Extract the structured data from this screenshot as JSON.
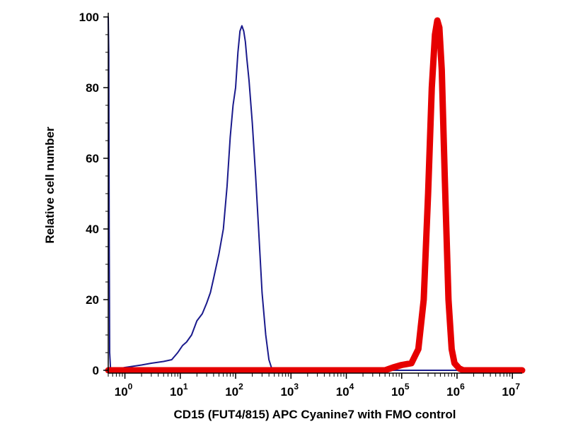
{
  "chart_data": {
    "type": "line",
    "title": "",
    "xlabel": "CD15 (FUT4/815) APC Cyanine7 with FMO control",
    "ylabel": "Relative cell number",
    "xscale": "log",
    "xlim": [
      0.5,
      15000000
    ],
    "ylim": [
      0,
      100
    ],
    "grid": false,
    "legend": "none",
    "x_ticks": [
      {
        "base": "10",
        "exp": "0",
        "value": 1
      },
      {
        "base": "10",
        "exp": "1",
        "value": 10
      },
      {
        "base": "10",
        "exp": "2",
        "value": 100
      },
      {
        "base": "10",
        "exp": "3",
        "value": 1000
      },
      {
        "base": "10",
        "exp": "4",
        "value": 10000
      },
      {
        "base": "10",
        "exp": "5",
        "value": 100000
      },
      {
        "base": "10",
        "exp": "6",
        "value": 1000000
      },
      {
        "base": "10",
        "exp": "7",
        "value": 10000000
      }
    ],
    "y_ticks": [
      {
        "label": "0",
        "value": 0
      },
      {
        "label": "20",
        "value": 20
      },
      {
        "label": "40",
        "value": 40
      },
      {
        "label": "60",
        "value": 60
      },
      {
        "label": "80",
        "value": 80
      },
      {
        "label": "100",
        "value": 100
      }
    ],
    "series": [
      {
        "color": "#1a1a8c",
        "style": "thin",
        "points": [
          [
            0.5,
            100
          ],
          [
            0.51,
            90
          ],
          [
            0.52,
            40
          ],
          [
            0.53,
            5
          ],
          [
            0.55,
            0.5
          ],
          [
            0.7,
            0.3
          ],
          [
            1,
            0.8
          ],
          [
            2,
            1.5
          ],
          [
            3,
            2
          ],
          [
            5,
            2.5
          ],
          [
            7,
            3
          ],
          [
            9,
            5
          ],
          [
            11,
            7
          ],
          [
            13,
            8
          ],
          [
            16,
            10
          ],
          [
            20,
            14
          ],
          [
            25,
            16
          ],
          [
            30,
            19
          ],
          [
            35,
            22
          ],
          [
            40,
            26
          ],
          [
            50,
            33
          ],
          [
            60,
            40
          ],
          [
            70,
            52
          ],
          [
            80,
            66
          ],
          [
            90,
            75
          ],
          [
            100,
            80
          ],
          [
            110,
            90
          ],
          [
            120,
            96
          ],
          [
            130,
            97.5
          ],
          [
            140,
            96
          ],
          [
            150,
            93
          ],
          [
            160,
            88
          ],
          [
            175,
            82
          ],
          [
            200,
            70
          ],
          [
            230,
            55
          ],
          [
            260,
            40
          ],
          [
            300,
            22
          ],
          [
            350,
            10
          ],
          [
            400,
            3
          ],
          [
            450,
            0.5
          ],
          [
            500,
            0
          ],
          [
            15000000,
            0
          ]
        ]
      },
      {
        "color": "#e60000",
        "style": "thick",
        "points": [
          [
            0.5,
            0
          ],
          [
            50000,
            0
          ],
          [
            70000,
            0.8
          ],
          [
            100000,
            1.5
          ],
          [
            150000,
            2
          ],
          [
            200000,
            6
          ],
          [
            250000,
            20
          ],
          [
            300000,
            50
          ],
          [
            350000,
            80
          ],
          [
            400000,
            95
          ],
          [
            440000,
            99
          ],
          [
            480000,
            97
          ],
          [
            530000,
            85
          ],
          [
            600000,
            55
          ],
          [
            700000,
            20
          ],
          [
            800000,
            6
          ],
          [
            900000,
            2
          ],
          [
            1100000,
            0.5
          ],
          [
            1300000,
            0
          ],
          [
            15000000,
            0
          ]
        ]
      }
    ]
  }
}
